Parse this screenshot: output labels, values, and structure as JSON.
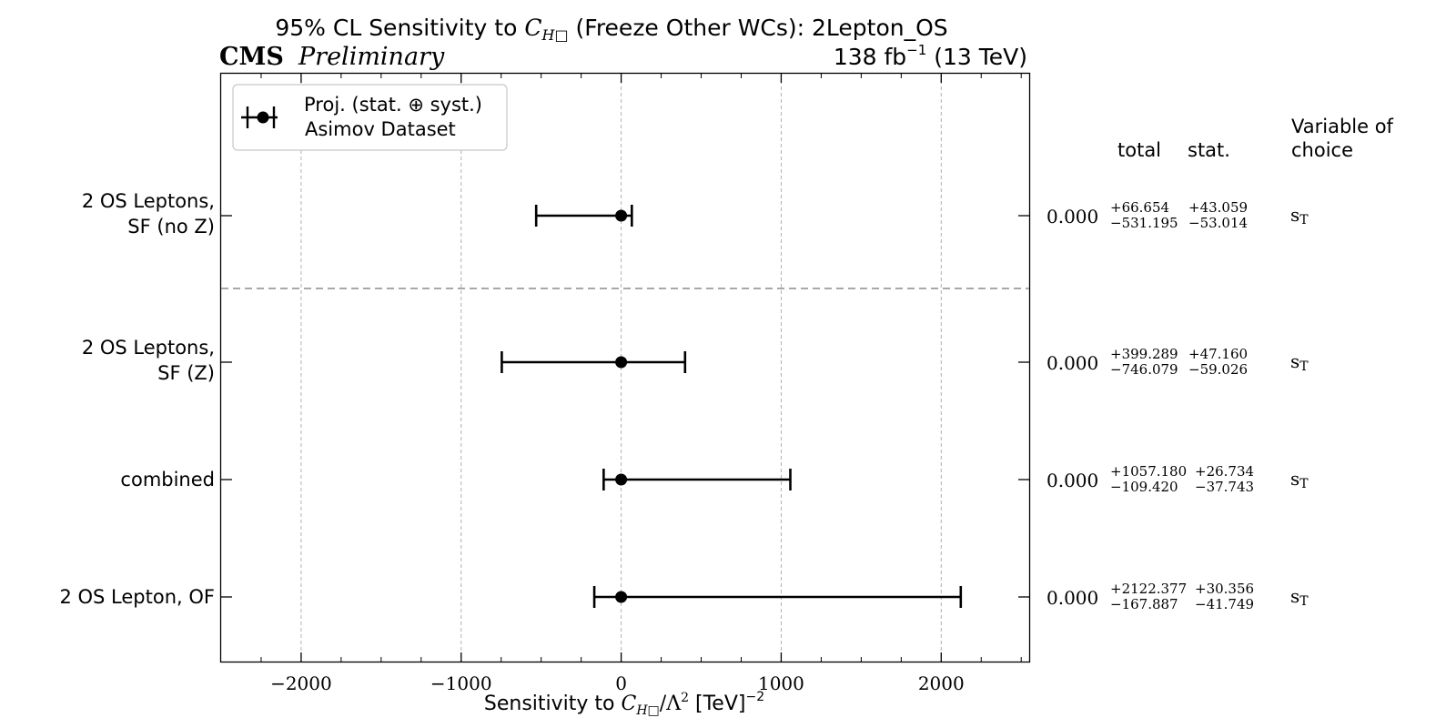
{
  "header": {
    "title_pre": "95% CL Sensitivity to ",
    "title_sym": "C",
    "title_sub": "H□",
    "title_post": " (Freeze Other WCs): 2Lepton_OS",
    "cms": "CMS",
    "preliminary": "Preliminary",
    "lumi": "138 fb",
    "lumi_exp": "−1",
    "energy": " (13 TeV)"
  },
  "legend": {
    "line1": "Proj. (stat. ⊕ syst.)",
    "line2": "Asimov Dataset"
  },
  "table": {
    "col_total": "total",
    "col_stat": "stat.",
    "col_var_line1": "Variable of",
    "col_var_line2": "choice"
  },
  "colors": {
    "line": "#000000",
    "grid": "#b0b0b0",
    "separator": "#8c8c8c"
  },
  "chart_data": {
    "type": "errorbar",
    "title": "95% CL Sensitivity to C_H□ (Freeze Other WCs): 2Lepton_OS",
    "xlabel": "Sensitivity to C_H□/Λ² [TeV]^−2",
    "xlabel_parts": {
      "pre": "Sensitivity to ",
      "sym": "C",
      "sub": "H□",
      "post": "/Λ",
      "sq": "2",
      "unit": " [TeV]",
      "unit_exp": "−2"
    },
    "xlim": [
      -2500,
      2550
    ],
    "xticks": [
      -2000,
      -1000,
      0,
      1000,
      2000
    ],
    "xtick_labels": [
      "−2000",
      "−1000",
      "0",
      "1000",
      "2000"
    ],
    "grid": true,
    "legend_position": "top-left",
    "rows": [
      {
        "label_line1": "2 OS Leptons,",
        "label_line2": "SF (no Z)",
        "center": 0.0,
        "center_label": "0.000",
        "total_plus": 66.654,
        "total_minus": 531.195,
        "total_plus_label": "+66.654",
        "total_minus_label": "−531.195",
        "stat_plus_label": "+43.059",
        "stat_minus_label": "−53.014",
        "variable": "s",
        "variable_sub": "T"
      },
      {
        "label_line1": "2 OS Leptons,",
        "label_line2": "SF (Z)",
        "center": 0.0,
        "center_label": "0.000",
        "total_plus": 399.289,
        "total_minus": 746.079,
        "total_plus_label": "+399.289",
        "total_minus_label": "−746.079",
        "stat_plus_label": "+47.160",
        "stat_minus_label": "−59.026",
        "variable": "s",
        "variable_sub": "T"
      },
      {
        "label_line1": "combined",
        "label_line2": "",
        "center": 0.0,
        "center_label": "0.000",
        "total_plus": 1057.18,
        "total_minus": 109.42,
        "total_plus_label": "+1057.180",
        "total_minus_label": "−109.420",
        "stat_plus_label": "+26.734",
        "stat_minus_label": "−37.743",
        "variable": "s",
        "variable_sub": "T"
      },
      {
        "label_line1": "2 OS Lepton, OF",
        "label_line2": "",
        "center": 0.0,
        "center_label": "0.000",
        "total_plus": 2122.377,
        "total_minus": 167.887,
        "total_plus_label": "+2122.377",
        "total_minus_label": "−167.887",
        "stat_plus_label": "+30.356",
        "stat_minus_label": "−41.749",
        "variable": "s",
        "variable_sub": "T"
      }
    ]
  }
}
